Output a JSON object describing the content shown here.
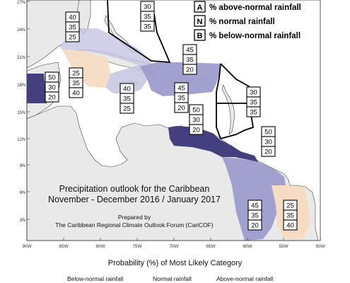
{
  "map": {
    "title_line1": "Precipitation outlook for the Caribbean",
    "title_line2": "November - December 2016 / January 2017",
    "prepared_by": "Prepared by",
    "forum": "The Caribbean Regional Climate Outlook Forum (CariCOF)",
    "lat_labels": [
      "27N",
      "24N",
      "21N",
      "18N",
      "15N",
      "12N",
      "9N",
      "6N",
      "3N"
    ],
    "lon_labels": [
      "90W",
      "85W",
      "80W",
      "75W",
      "70W",
      "65W",
      "60W",
      "55W",
      "50W"
    ],
    "colors": {
      "above_dark": "#44407f",
      "above_light": "#9e9ccc",
      "normal_light": "#c6c4e2",
      "below_light": "#f6dcc3",
      "land": "#e9e9e9",
      "sea": "#ffffff"
    }
  },
  "key": {
    "items": [
      {
        "letter": "A",
        "text": "% above-normal rainfall"
      },
      {
        "letter": "N",
        "text": "% normal rainfall"
      },
      {
        "letter": "B",
        "text": "% below-normal rainfall"
      }
    ]
  },
  "boxes": [
    {
      "id": "northern-islands",
      "values": [
        "30",
        "35",
        "35"
      ]
    },
    {
      "id": "bahamas-cuba-north",
      "values": [
        "40",
        "35",
        "25"
      ]
    },
    {
      "id": "hispaniola",
      "values": [
        "45",
        "35",
        "20"
      ]
    },
    {
      "id": "belize-honduras",
      "values": [
        "50",
        "30",
        "20"
      ]
    },
    {
      "id": "cuba-jamaica",
      "values": [
        "25",
        "35",
        "40"
      ]
    },
    {
      "id": "central-caribbean",
      "values": [
        "40",
        "35",
        "25"
      ]
    },
    {
      "id": "puerto-rico",
      "values": [
        "45",
        "35",
        "20"
      ]
    },
    {
      "id": "eastern-caribbean",
      "values": [
        "50",
        "30",
        "20"
      ]
    },
    {
      "id": "barbados",
      "values": [
        "30",
        "35",
        "35"
      ]
    },
    {
      "id": "trinidad",
      "values": [
        "50",
        "30",
        "20"
      ]
    },
    {
      "id": "guianas",
      "values": [
        "45",
        "35",
        "20"
      ]
    },
    {
      "id": "french-guiana",
      "values": [
        "25",
        "35",
        "40"
      ]
    }
  ],
  "footer": {
    "title": "Probability (%) of Most Likely Category",
    "legend": [
      "Below-normal rainfall",
      "Normal rainfall",
      "Above-normal rainfall"
    ]
  }
}
